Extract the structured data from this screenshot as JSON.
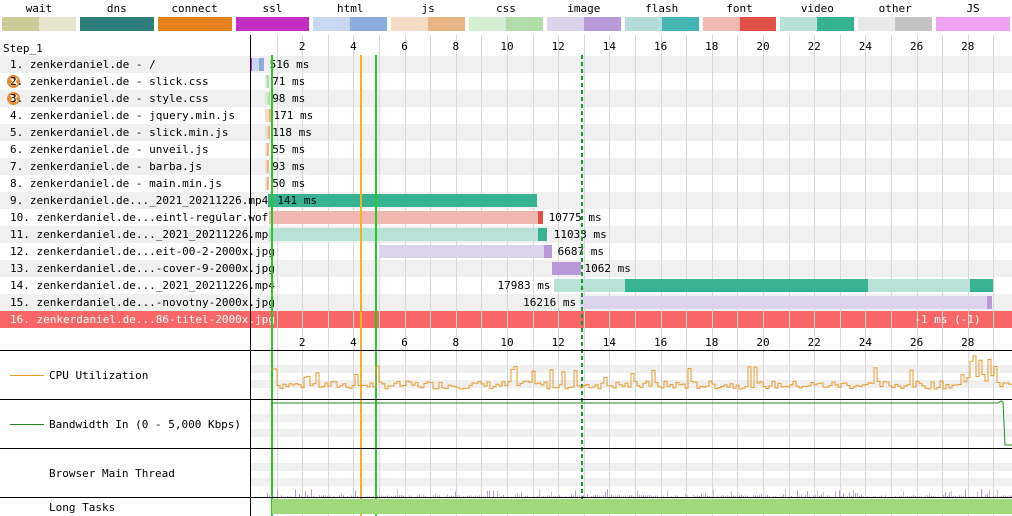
{
  "legend": [
    {
      "label": "wait",
      "a": "#cccc99",
      "b": "#e6e6cc",
      "single": false
    },
    {
      "label": "dns",
      "a": "#2e7d7d",
      "b": "#2e7d7d",
      "single": true
    },
    {
      "label": "connect",
      "a": "#e6821e",
      "b": "#e6821e",
      "single": true
    },
    {
      "label": "ssl",
      "a": "#c62fc4",
      "b": "#c62fc4",
      "single": true
    },
    {
      "label": "html",
      "a": "#c8d8f0",
      "b": "#8cacdc",
      "single": false
    },
    {
      "label": "js",
      "a": "#f4dcc4",
      "b": "#e8b484",
      "single": false
    },
    {
      "label": "css",
      "a": "#d4ecd0",
      "b": "#b2dca8",
      "single": false
    },
    {
      "label": "image",
      "a": "#dcd4ec",
      "b": "#b89ad8",
      "single": false
    },
    {
      "label": "flash",
      "a": "#b4dcdc",
      "b": "#45b4b4",
      "single": false
    },
    {
      "label": "font",
      "a": "#f0b8b0",
      "b": "#e05046",
      "single": false
    },
    {
      "label": "video",
      "a": "#b8e2d6",
      "b": "#37b394",
      "single": false
    },
    {
      "label": "other",
      "a": "#e8e8e8",
      "b": "#c4c4c4",
      "single": false
    },
    {
      "label": "JS Execution",
      "a": "#f0a2f0",
      "b": "#f0a2f0",
      "single": true
    }
  ],
  "step_label": "Step_1",
  "ticks": [
    "2",
    "4",
    "6",
    "8",
    "10",
    "12",
    "14",
    "16",
    "18",
    "20",
    "22",
    "24",
    "26",
    "28"
  ],
  "rows": [
    {
      "label": "1. zenkerdaniel.de - /",
      "time": "516 ms",
      "warn": false,
      "err": false
    },
    {
      "label": "2. zenkerdaniel.de - slick.css",
      "time": "71 ms",
      "warn": true,
      "err": false
    },
    {
      "label": "3. zenkerdaniel.de - style.css",
      "time": "98 ms",
      "warn": true,
      "err": false
    },
    {
      "label": "4. zenkerdaniel.de - jquery.min.js",
      "time": "171 ms",
      "warn": false,
      "err": false
    },
    {
      "label": "5. zenkerdaniel.de - slick.min.js",
      "time": "118 ms",
      "warn": false,
      "err": false
    },
    {
      "label": "6. zenkerdaniel.de - unveil.js",
      "time": "55 ms",
      "warn": false,
      "err": false
    },
    {
      "label": "7. zenkerdaniel.de - barba.js",
      "time": "93 ms",
      "warn": false,
      "err": false
    },
    {
      "label": "8. zenkerdaniel.de - main.min.js",
      "time": "50 ms",
      "warn": false,
      "err": false
    },
    {
      "label": "9. zenkerdaniel.de..._2021_20211226.mp4",
      "time": "141 ms",
      "warn": false,
      "err": false
    },
    {
      "label": "10. zenkerdaniel.de...eintl-regular.woff",
      "time": "10775 ms",
      "warn": false,
      "err": false
    },
    {
      "label": "11. zenkerdaniel.de..._2021_20211226.mp4",
      "time": "11033 ms",
      "warn": false,
      "err": false
    },
    {
      "label": "12. zenkerdaniel.de...eit-00-2-2000x.jpg",
      "time": "6687 ms",
      "warn": false,
      "err": false
    },
    {
      "label": "13. zenkerdaniel.de...-cover-9-2000x.jpg",
      "time": "1062 ms",
      "warn": false,
      "err": false
    },
    {
      "label": "14. zenkerdaniel.de..._2021_20211226.mp4",
      "time": "17983 ms",
      "warn": false,
      "err": false
    },
    {
      "label": "15. zenkerdaniel.de...-novotny-2000x.jpg",
      "time": "16216 ms",
      "warn": false,
      "err": false
    },
    {
      "label": "16. zenkerdaniel.de...86-titel-2000x.jpg",
      "time": "-1 ms (-1)",
      "warn": false,
      "err": true
    }
  ],
  "cpu_label": "CPU Utilization",
  "bw_label": "Bandwidth In (0 - 5,000 Kbps)",
  "main_thread_label": "Browser Main Thread",
  "long_tasks_label": "Long Tasks",
  "colors": {
    "cpu": "#e89a2c",
    "bandwidth": "#1e8c1e",
    "long_task": "#a0d87c",
    "green_line": "#28c828",
    "orange_line": "#f0b428",
    "dashed_line": "#1e9632"
  }
}
